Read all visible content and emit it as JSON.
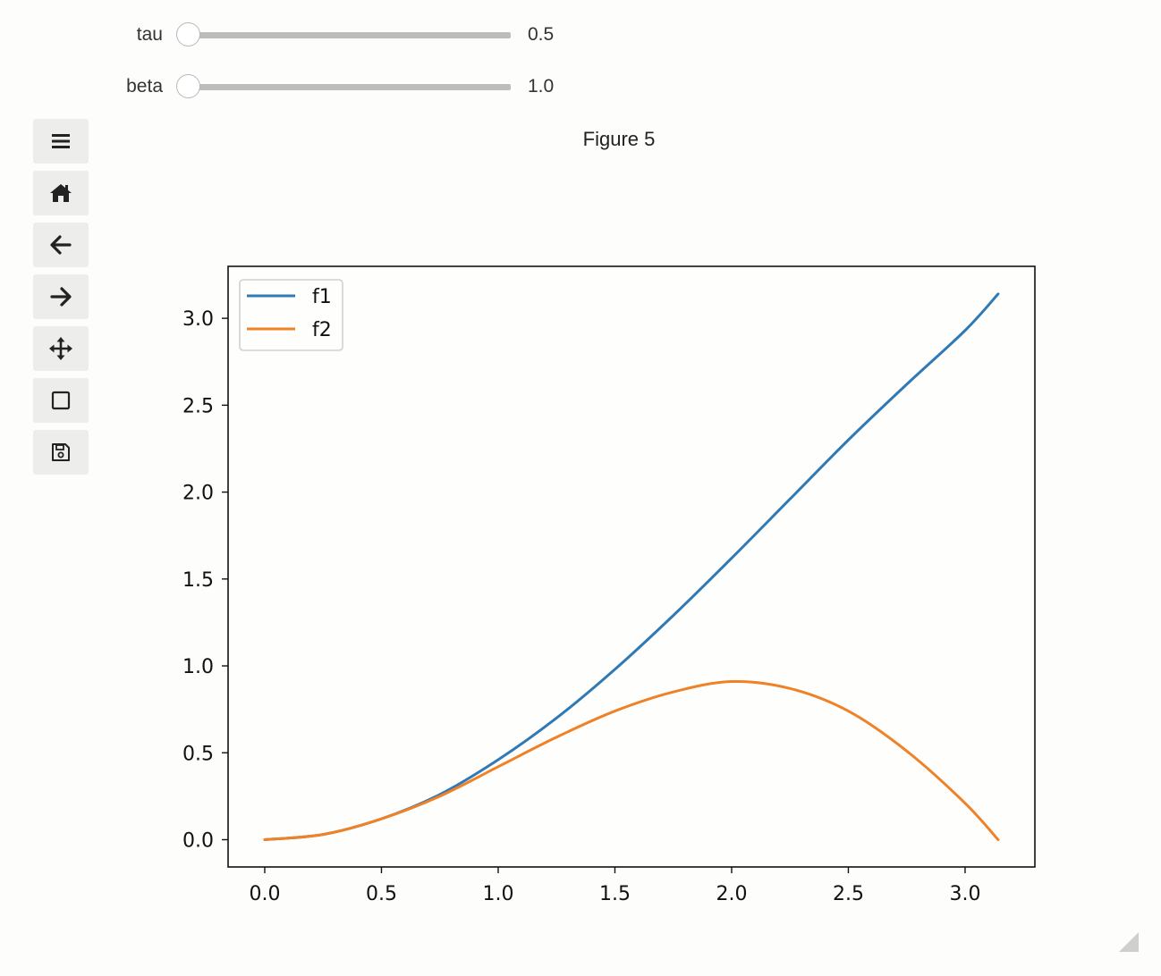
{
  "sliders": [
    {
      "label": "tau",
      "value_text": "0.5",
      "fraction": 0.0
    },
    {
      "label": "beta",
      "value_text": "1.0",
      "fraction": 0.0
    }
  ],
  "toolbar": [
    {
      "name": "menu-button",
      "icon": "menu-icon"
    },
    {
      "name": "home-button",
      "icon": "home-icon"
    },
    {
      "name": "back-button",
      "icon": "arrow-left-icon"
    },
    {
      "name": "forward-button",
      "icon": "arrow-right-icon"
    },
    {
      "name": "pan-button",
      "icon": "move-icon"
    },
    {
      "name": "zoom-rect-button",
      "icon": "square-icon"
    },
    {
      "name": "save-button",
      "icon": "save-icon"
    }
  ],
  "figure": {
    "title": "Figure 5"
  },
  "chart_data": {
    "type": "line",
    "title": "",
    "xlabel": "",
    "ylabel": "",
    "xlim": [
      -0.157,
      3.299
    ],
    "ylim": [
      -0.157,
      3.299
    ],
    "xticks": [
      0.0,
      0.5,
      1.0,
      1.5,
      2.0,
      2.5,
      3.0
    ],
    "xtick_labels": [
      "0.0",
      "0.5",
      "1.0",
      "1.5",
      "2.0",
      "2.5",
      "3.0"
    ],
    "yticks": [
      0.0,
      0.5,
      1.0,
      1.5,
      2.0,
      2.5,
      3.0
    ],
    "ytick_labels": [
      "0.0",
      "0.5",
      "1.0",
      "1.5",
      "2.0",
      "2.5",
      "3.0"
    ],
    "grid": false,
    "legend": "top-left",
    "series": [
      {
        "name": "f1",
        "color": "#2f7ab4",
        "x": [
          0.0,
          0.25,
          0.5,
          0.75,
          1.0,
          1.25,
          1.5,
          1.75,
          2.0,
          2.25,
          2.5,
          2.75,
          3.0,
          3.1416
        ],
        "y": [
          0.0,
          0.03,
          0.12,
          0.26,
          0.46,
          0.7,
          0.98,
          1.29,
          1.62,
          1.96,
          2.3,
          2.62,
          2.93,
          3.14
        ]
      },
      {
        "name": "f2",
        "color": "#ef8127",
        "x": [
          0.0,
          0.25,
          0.5,
          0.75,
          1.0,
          1.25,
          1.5,
          1.75,
          2.0,
          2.25,
          2.5,
          2.75,
          3.0,
          3.1416
        ],
        "y": [
          0.0,
          0.03,
          0.12,
          0.25,
          0.42,
          0.59,
          0.74,
          0.85,
          0.91,
          0.87,
          0.74,
          0.51,
          0.21,
          0.0
        ]
      }
    ]
  }
}
